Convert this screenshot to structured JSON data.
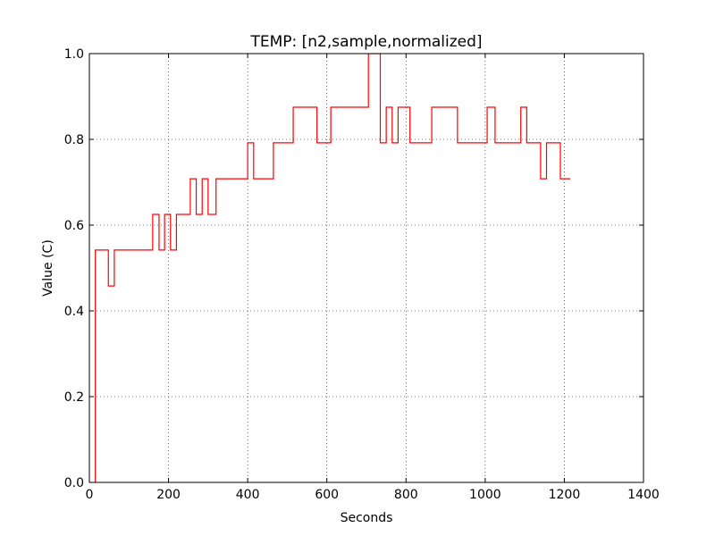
{
  "chart_data": {
    "type": "line",
    "title": "TEMP: [n2,sample,normalized]",
    "xlabel": "Seconds",
    "ylabel": "Value (C)",
    "xlim": [
      0,
      1400
    ],
    "ylim": [
      0.0,
      1.0
    ],
    "x_ticks": [
      0,
      200,
      400,
      600,
      800,
      1000,
      1200,
      1400
    ],
    "x_tick_labels": [
      "0",
      "200",
      "400",
      "600",
      "800",
      "1000",
      "1200",
      "1400"
    ],
    "y_ticks": [
      0.0,
      0.2,
      0.4,
      0.6,
      0.8,
      1.0
    ],
    "y_tick_labels": [
      "0.0",
      "0.2",
      "0.4",
      "0.6",
      "0.8",
      "1.0"
    ],
    "grid": true,
    "grid_style": "dotted",
    "series": [
      {
        "color": "#ff0000",
        "step": "post",
        "x": [
          12,
          15,
          48,
          63,
          160,
          176,
          190,
          205,
          220,
          255,
          270,
          285,
          300,
          320,
          400,
          415,
          465,
          515,
          575,
          610,
          705,
          735,
          750,
          765,
          780,
          810,
          865,
          930,
          1005,
          1025,
          1090,
          1105,
          1140,
          1155,
          1190,
          1215
        ],
        "y": [
          0.0,
          0.542,
          0.458,
          0.542,
          0.625,
          0.542,
          0.625,
          0.542,
          0.625,
          0.708,
          0.625,
          0.708,
          0.625,
          0.708,
          0.792,
          0.708,
          0.792,
          0.875,
          0.792,
          0.875,
          1.0,
          0.792,
          0.875,
          0.792,
          0.875,
          0.792,
          0.875,
          0.792,
          0.875,
          0.792,
          0.875,
          0.792,
          0.708,
          0.792,
          0.708,
          0.708
        ]
      }
    ]
  }
}
